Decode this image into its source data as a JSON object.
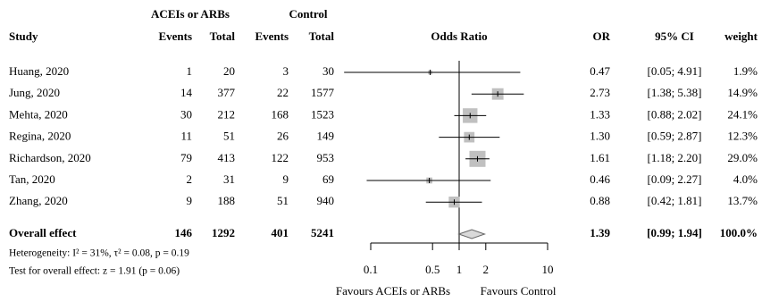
{
  "chart_data": {
    "type": "forest",
    "header_groups": [
      "ACEIs or ARBs",
      "Control"
    ],
    "columns": [
      "Study",
      "Events",
      "Total",
      "Events",
      "Total",
      "Odds Ratio",
      "OR",
      "95% CI",
      "weight"
    ],
    "studies": [
      {
        "name": "Huang, 2020",
        "events_a": 1,
        "total_a": 20,
        "events_c": 3,
        "total_c": 30,
        "or": {
          "value": 0.47,
          "label": "0.47"
        },
        "ci": [
          0.05,
          4.91
        ],
        "ci_label": "[0.05; 4.91]",
        "weight": {
          "value": 1.9,
          "label": "1.9%"
        }
      },
      {
        "name": "Jung, 2020",
        "events_a": 14,
        "total_a": 377,
        "events_c": 22,
        "total_c": 1577,
        "or": {
          "value": 2.73,
          "label": "2.73"
        },
        "ci": [
          1.38,
          5.38
        ],
        "ci_label": "[1.38; 5.38]",
        "weight": {
          "value": 14.9,
          "label": "14.9%"
        }
      },
      {
        "name": "Mehta, 2020",
        "events_a": 30,
        "total_a": 212,
        "events_c": 168,
        "total_c": 1523,
        "or": {
          "value": 1.33,
          "label": "1.33"
        },
        "ci": [
          0.88,
          2.02
        ],
        "ci_label": "[0.88; 2.02]",
        "weight": {
          "value": 24.1,
          "label": "24.1%"
        }
      },
      {
        "name": "Regina, 2020",
        "events_a": 11,
        "total_a": 51,
        "events_c": 26,
        "total_c": 149,
        "or": {
          "value": 1.3,
          "label": "1.30"
        },
        "ci": [
          0.59,
          2.87
        ],
        "ci_label": "[0.59; 2.87]",
        "weight": {
          "value": 12.3,
          "label": "12.3%"
        }
      },
      {
        "name": "Richardson, 2020",
        "events_a": 79,
        "total_a": 413,
        "events_c": 122,
        "total_c": 953,
        "or": {
          "value": 1.61,
          "label": "1.61"
        },
        "ci": [
          1.18,
          2.2
        ],
        "ci_label": "[1.18; 2.20]",
        "weight": {
          "value": 29.0,
          "label": "29.0%"
        }
      },
      {
        "name": "Tan, 2020",
        "events_a": 2,
        "total_a": 31,
        "events_c": 9,
        "total_c": 69,
        "or": {
          "value": 0.46,
          "label": "0.46"
        },
        "ci": [
          0.09,
          2.27
        ],
        "ci_label": "[0.09; 2.27]",
        "weight": {
          "value": 4.0,
          "label": "4.0%"
        }
      },
      {
        "name": "Zhang, 2020",
        "events_a": 9,
        "total_a": 188,
        "events_c": 51,
        "total_c": 940,
        "or": {
          "value": 0.88,
          "label": "0.88"
        },
        "ci": [
          0.42,
          1.81
        ],
        "ci_label": "[0.42; 1.81]",
        "weight": {
          "value": 13.7,
          "label": "13.7%"
        }
      }
    ],
    "overall": {
      "name": "Overall effect",
      "events_a": 146,
      "total_a": 1292,
      "events_c": 401,
      "total_c": 5241,
      "or": {
        "value": 1.39,
        "label": "1.39"
      },
      "ci": [
        0.99,
        1.94
      ],
      "ci_label": "[0.99; 1.94]",
      "weight": {
        "value": 100.0,
        "label": "100.0%"
      }
    },
    "heterogeneity": "Heterogeneity: I² = 31%, τ² = 0.08, p = 0.19",
    "overall_test": "Test for overall effect: z = 1.91 (p = 0.06)",
    "xlim": [
      0.1,
      10
    ],
    "xticks": [
      0.1,
      0.5,
      1,
      2,
      10
    ],
    "log_x": true,
    "favours_left": "Favours ACEIs or ARBs",
    "favours_right": "Favours Control",
    "box_color": "#c0c0c0",
    "diamond_color": "#d9d9d9"
  }
}
